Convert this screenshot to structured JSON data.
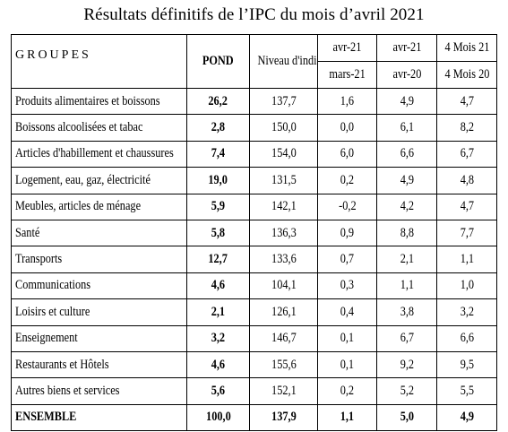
{
  "title": "Résultats définitifs de l’IPC du mois d’avril 2021",
  "header": {
    "groupes": "GROUPES",
    "pond": "POND",
    "niveau": "Niveau d'indice",
    "col1_top": "avr-21",
    "col1_bottom": "mars-21",
    "col2_top": "avr-21",
    "col2_bottom": "avr-20",
    "col3_top": "4 Mois 21",
    "col3_bottom": "4 Mois 20"
  },
  "rows": [
    {
      "groupe": "Produits alimentaires et boissons",
      "pond": "26,2",
      "niveau": "137,7",
      "v1": "1,6",
      "v2": "4,9",
      "v3": "4,7"
    },
    {
      "groupe": "Boissons alcoolisées et tabac",
      "pond": "2,8",
      "niveau": "150,0",
      "v1": "0,0",
      "v2": "6,1",
      "v3": "8,2"
    },
    {
      "groupe": "Articles d'habillement et chaussures",
      "pond": "7,4",
      "niveau": "154,0",
      "v1": "6,0",
      "v2": "6,6",
      "v3": "6,7"
    },
    {
      "groupe": "Logement, eau, gaz, électricité",
      "pond": "19,0",
      "niveau": "131,5",
      "v1": "0,2",
      "v2": "4,9",
      "v3": "4,8"
    },
    {
      "groupe": "Meubles, articles de ménage",
      "pond": "5,9",
      "niveau": "142,1",
      "v1": "-0,2",
      "v2": "4,2",
      "v3": "4,7"
    },
    {
      "groupe": "Santé",
      "pond": "5,8",
      "niveau": "136,3",
      "v1": "0,9",
      "v2": "8,8",
      "v3": "7,7"
    },
    {
      "groupe": "Transports",
      "pond": "12,7",
      "niveau": "133,6",
      "v1": "0,7",
      "v2": "2,1",
      "v3": "1,1"
    },
    {
      "groupe": "Communications",
      "pond": "4,6",
      "niveau": "104,1",
      "v1": "0,3",
      "v2": "1,1",
      "v3": "1,0"
    },
    {
      "groupe": "Loisirs et culture",
      "pond": "2,1",
      "niveau": "126,1",
      "v1": "0,4",
      "v2": "3,8",
      "v3": "3,2"
    },
    {
      "groupe": "Enseignement",
      "pond": "3,2",
      "niveau": "146,7",
      "v1": "0,1",
      "v2": "6,7",
      "v3": "6,6"
    },
    {
      "groupe": "Restaurants et Hôtels",
      "pond": "4,6",
      "niveau": "155,6",
      "v1": "0,1",
      "v2": "9,2",
      "v3": "9,5"
    },
    {
      "groupe": "Autres biens et services",
      "pond": "5,6",
      "niveau": "152,1",
      "v1": "0,2",
      "v2": "5,2",
      "v3": "5,5"
    }
  ],
  "total": {
    "groupe": "ENSEMBLE",
    "pond": "100,0",
    "niveau": "137,9",
    "v1": "1,1",
    "v2": "5,0",
    "v3": "4,9"
  }
}
